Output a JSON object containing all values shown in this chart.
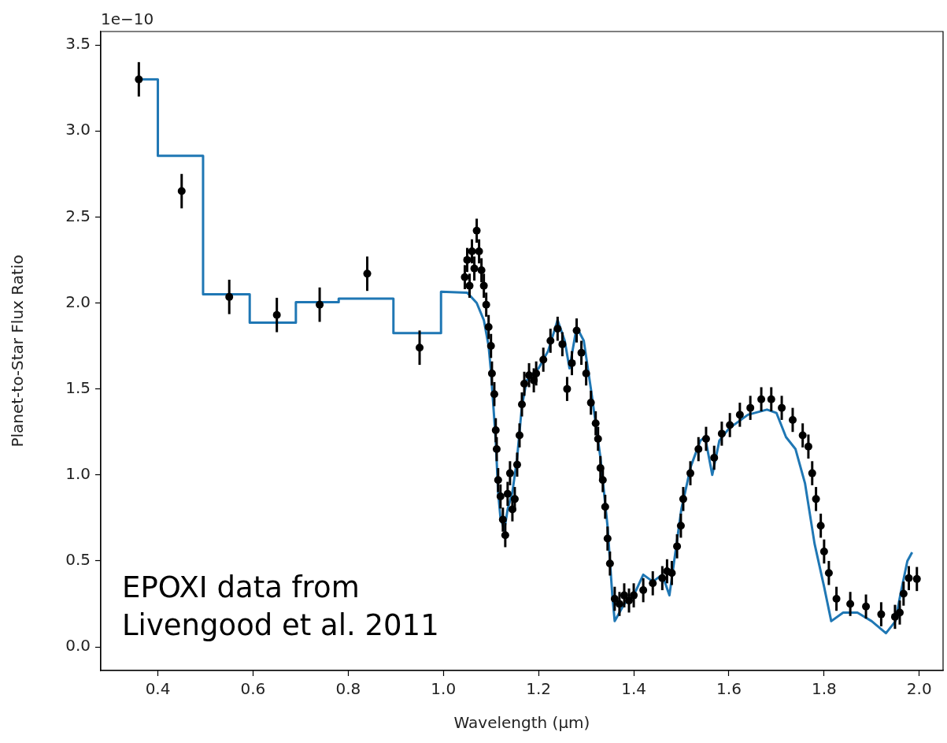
{
  "chart_data": {
    "type": "scatter",
    "xlabel": "Wavelength (µm)",
    "ylabel": "Planet-to-Star Flux Ratio",
    "annotations": [
      "1e−10",
      "EPOXI data from\nLivengood et al. 2011"
    ],
    "xlim": [
      0.28,
      2.05
    ],
    "xticks": [
      0.4,
      0.6,
      0.8,
      {
        "value": 1,
        "label": "1.0"
      },
      1.2,
      1.4,
      1.6,
      1.8,
      {
        "value": 2,
        "label": "2.0"
      }
    ],
    "ylim": [
      -0.137,
      3.578
    ],
    "yticks": [
      {
        "value": 0,
        "label": "0.0"
      },
      0.5,
      {
        "value": 1,
        "label": "1.0"
      },
      1.5,
      {
        "value": 2,
        "label": "2.0"
      },
      2.5,
      {
        "value": 3,
        "label": "3.0"
      },
      3.5
    ],
    "grid": false,
    "legend": false,
    "series": [
      {
        "type": "line",
        "color": "#1f77b4",
        "marker": "none",
        "line_style": "solid",
        "x": [
          0.36,
          0.4,
          0.4,
          0.495,
          0.495,
          0.593,
          0.593,
          0.69,
          0.69,
          0.78,
          0.78,
          0.895,
          0.895,
          0.995,
          0.995,
          1.05,
          1.07,
          1.085,
          1.095,
          1.1,
          1.11,
          1.115,
          1.12,
          1.128,
          1.135,
          1.145,
          1.155,
          1.165,
          1.175,
          1.2,
          1.22,
          1.24,
          1.255,
          1.265,
          1.28,
          1.295,
          1.31,
          1.33,
          1.345,
          1.355,
          1.36,
          1.38,
          1.4,
          1.42,
          1.44,
          1.46,
          1.475,
          1.485,
          1.5,
          1.52,
          1.54,
          1.55,
          1.565,
          1.58,
          1.6,
          1.64,
          1.68,
          1.7,
          1.72,
          1.74,
          1.76,
          1.78,
          1.8,
          1.815,
          1.84,
          1.87,
          1.9,
          1.93,
          1.95,
          1.96,
          1.975,
          1.985
        ],
        "values": [
          3.3,
          3.3,
          2.855,
          2.855,
          2.05,
          2.05,
          1.885,
          1.885,
          2.005,
          2.005,
          2.025,
          2.025,
          1.825,
          1.825,
          2.065,
          2.06,
          2.0,
          1.9,
          1.75,
          1.6,
          1.2,
          0.9,
          0.75,
          0.68,
          0.8,
          0.9,
          1.1,
          1.4,
          1.55,
          1.62,
          1.72,
          1.9,
          1.78,
          1.62,
          1.86,
          1.78,
          1.5,
          1.1,
          0.7,
          0.3,
          0.15,
          0.25,
          0.3,
          0.42,
          0.38,
          0.42,
          0.3,
          0.5,
          0.8,
          1.05,
          1.2,
          1.22,
          1.0,
          1.2,
          1.27,
          1.35,
          1.38,
          1.36,
          1.22,
          1.15,
          0.95,
          0.6,
          0.35,
          0.15,
          0.2,
          0.2,
          0.15,
          0.08,
          0.15,
          0.3,
          0.5,
          0.55
        ]
      },
      {
        "type": "scatter",
        "color": "#000000",
        "marker": "circle",
        "x": [
          0.36,
          0.45,
          0.55,
          0.65,
          0.74,
          0.84,
          0.95,
          1.045,
          1.05,
          1.055,
          1.06,
          1.065,
          1.07,
          1.075,
          1.08,
          1.085,
          1.09,
          1.095,
          1.1,
          1.102,
          1.107,
          1.11,
          1.112,
          1.115,
          1.12,
          1.125,
          1.13,
          1.135,
          1.14,
          1.145,
          1.15,
          1.155,
          1.16,
          1.165,
          1.17,
          1.18,
          1.19,
          1.195,
          1.21,
          1.225,
          1.24,
          1.25,
          1.26,
          1.27,
          1.28,
          1.29,
          1.3,
          1.31,
          1.32,
          1.325,
          1.33,
          1.335,
          1.34,
          1.345,
          1.35,
          1.36,
          1.37,
          1.38,
          1.39,
          1.4,
          1.42,
          1.44,
          1.46,
          1.47,
          1.48,
          1.491,
          1.499,
          1.504,
          1.519,
          1.536,
          1.552,
          1.569,
          1.585,
          1.602,
          1.623,
          1.645,
          1.668,
          1.689,
          1.711,
          1.734,
          1.755,
          1.767,
          1.775,
          1.783,
          1.793,
          1.8,
          1.81,
          1.826,
          1.855,
          1.888,
          1.92,
          1.949,
          1.959,
          1.967,
          1.978,
          1.995
        ],
        "values": [
          3.3,
          2.65,
          2.035,
          1.93,
          1.99,
          2.17,
          1.74,
          2.15,
          2.25,
          2.1,
          2.3,
          2.2,
          2.42,
          2.3,
          2.19,
          2.1,
          1.99,
          1.86,
          1.75,
          1.59,
          1.47,
          1.26,
          1.15,
          0.97,
          0.875,
          0.74,
          0.65,
          0.89,
          1.01,
          0.8,
          0.86,
          1.06,
          1.23,
          1.41,
          1.53,
          1.58,
          1.55,
          1.59,
          1.67,
          1.78,
          1.85,
          1.76,
          1.5,
          1.65,
          1.84,
          1.71,
          1.59,
          1.42,
          1.3,
          1.21,
          1.04,
          0.97,
          0.815,
          0.63,
          0.485,
          0.28,
          0.25,
          0.3,
          0.27,
          0.3,
          0.33,
          0.37,
          0.4,
          0.44,
          0.43,
          0.585,
          0.705,
          0.86,
          1.01,
          1.15,
          1.21,
          1.1,
          1.24,
          1.29,
          1.35,
          1.39,
          1.44,
          1.44,
          1.39,
          1.32,
          1.23,
          1.165,
          1.01,
          0.86,
          0.705,
          0.555,
          0.43,
          0.28,
          0.25,
          0.235,
          0.19,
          0.175,
          0.2,
          0.31,
          0.4,
          0.395
        ],
        "errors": [
          0.1,
          0.1,
          0.1,
          0.1,
          0.1,
          0.1,
          0.1,
          0.07,
          0.07,
          0.07,
          0.07,
          0.07,
          0.07,
          0.07,
          0.07,
          0.07,
          0.07,
          0.07,
          0.07,
          0.07,
          0.07,
          0.07,
          0.07,
          0.07,
          0.07,
          0.07,
          0.07,
          0.07,
          0.07,
          0.07,
          0.07,
          0.07,
          0.07,
          0.07,
          0.07,
          0.07,
          0.07,
          0.07,
          0.07,
          0.07,
          0.07,
          0.07,
          0.07,
          0.07,
          0.07,
          0.07,
          0.07,
          0.07,
          0.07,
          0.07,
          0.07,
          0.07,
          0.07,
          0.07,
          0.07,
          0.07,
          0.07,
          0.07,
          0.07,
          0.07,
          0.07,
          0.07,
          0.07,
          0.07,
          0.07,
          0.07,
          0.07,
          0.07,
          0.07,
          0.07,
          0.07,
          0.07,
          0.07,
          0.07,
          0.07,
          0.07,
          0.07,
          0.07,
          0.07,
          0.07,
          0.07,
          0.07,
          0.07,
          0.07,
          0.07,
          0.07,
          0.07,
          0.07,
          0.07,
          0.07,
          0.07,
          0.07,
          0.07,
          0.07,
          0.07,
          0.07
        ]
      }
    ]
  }
}
